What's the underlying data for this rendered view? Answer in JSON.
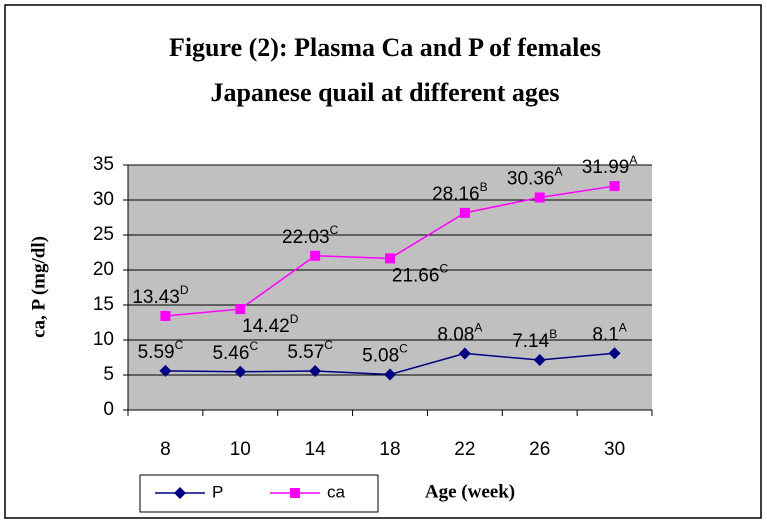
{
  "chart_data": {
    "type": "line",
    "title": [
      "Figure (2): Plasma Ca and P of females",
      "Japanese quail  at different ages"
    ],
    "x_label": "Age (week)",
    "y_label": "ca, P (mg/dl)",
    "categories": [
      "8",
      "10",
      "14",
      "18",
      "22",
      "26",
      "30"
    ],
    "series": [
      {
        "name": "P",
        "color": "#000080",
        "values": [
          5.59,
          5.46,
          5.57,
          5.08,
          8.08,
          7.14,
          8.1
        ],
        "letters": [
          "C",
          "C",
          "C",
          "C",
          "A",
          "B",
          "A"
        ]
      },
      {
        "name": "ca",
        "color": "#ff00ff",
        "values": [
          13.43,
          14.42,
          22.03,
          21.66,
          28.16,
          30.36,
          31.99
        ],
        "letters": [
          "D",
          "D",
          "C",
          "C",
          "B",
          "A",
          "A"
        ]
      }
    ],
    "ylim": [
      0,
      35
    ],
    "yticks": [
      0,
      5,
      10,
      15,
      20,
      25,
      30,
      35
    ],
    "grid": true,
    "legend": "bottom"
  }
}
